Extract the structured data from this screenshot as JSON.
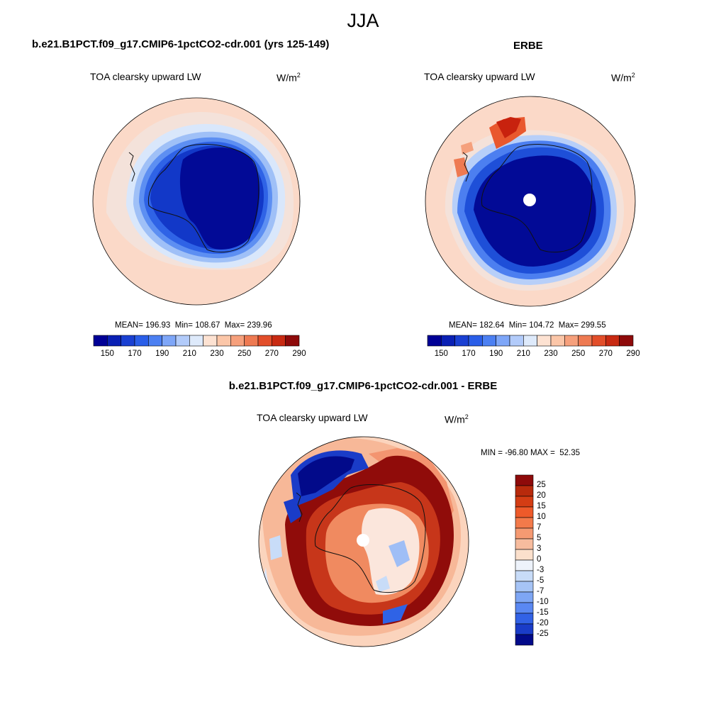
{
  "figure": {
    "season": "JJA",
    "units_base": "W/m",
    "units_exp": "2"
  },
  "panels": {
    "model": {
      "header": "b.e21.B1PCT.f09_g17.CMIP6-1pctCO2-cdr.001 (yrs 125-149)",
      "variable": "TOA clearsky upward LW",
      "stats": {
        "mean": "196.93",
        "min": "108.67",
        "max": "239.96"
      }
    },
    "obs": {
      "header": "ERBE",
      "variable": "TOA clearsky upward LW",
      "stats": {
        "mean": "182.64",
        "min": "104.72",
        "max": "299.55"
      }
    },
    "diff": {
      "header": "b.e21.B1PCT.f09_g17.CMIP6-1pctCO2-cdr.001 - ERBE",
      "variable": "TOA clearsky upward LW",
      "minmax": {
        "min": "-96.80",
        "max": "52.35"
      }
    }
  },
  "labels": {
    "mean": "MEAN=",
    "min": "Min=",
    "max": "Max=",
    "min_caps": "MIN =",
    "max_caps": "MAX ="
  },
  "chart_data": [
    {
      "type": "heatmap",
      "projection": "south-polar-stereographic",
      "title": "b.e21.B1PCT.f09_g17.CMIP6-1pctCO2-cdr.001 (yrs 125-149)",
      "subtitle": "TOA clearsky upward LW",
      "units": "W/m2",
      "colorbar": {
        "ticks": [
          "150",
          "170",
          "190",
          "210",
          "230",
          "250",
          "270",
          "290"
        ],
        "colors": [
          "#000096",
          "#0a20b4",
          "#1a40d2",
          "#2a5ee8",
          "#4c80f2",
          "#7ea6f8",
          "#b2cbfa",
          "#deeafb",
          "#fde2d2",
          "#fbc6a8",
          "#f6a07c",
          "#ee7a52",
          "#e24e2a",
          "#c82a12",
          "#8e0a0a"
        ]
      },
      "stats": {
        "mean": 196.93,
        "min": 108.67,
        "max": 239.96
      }
    },
    {
      "type": "heatmap",
      "projection": "south-polar-stereographic",
      "title": "ERBE",
      "subtitle": "TOA clearsky upward LW",
      "units": "W/m2",
      "colorbar": {
        "ticks": [
          "150",
          "170",
          "190",
          "210",
          "230",
          "250",
          "270",
          "290"
        ],
        "colors": [
          "#000096",
          "#0a20b4",
          "#1a40d2",
          "#2a5ee8",
          "#4c80f2",
          "#7ea6f8",
          "#b2cbfa",
          "#deeafb",
          "#fde2d2",
          "#fbc6a8",
          "#f6a07c",
          "#ee7a52",
          "#e24e2a",
          "#c82a12",
          "#8e0a0a"
        ]
      },
      "stats": {
        "mean": 182.64,
        "min": 104.72,
        "max": 299.55
      }
    },
    {
      "type": "heatmap",
      "projection": "south-polar-stereographic",
      "title": "b.e21.B1PCT.f09_g17.CMIP6-1pctCO2-cdr.001 - ERBE",
      "subtitle": "TOA clearsky upward LW",
      "units": "W/m2",
      "colorbar": {
        "orientation": "vertical",
        "ticks": [
          "25",
          "20",
          "15",
          "10",
          "7",
          "5",
          "3",
          "0",
          "-3",
          "-5",
          "-7",
          "-10",
          "-15",
          "-20",
          "-25"
        ],
        "colors": [
          "#8e0a0a",
          "#b82a0c",
          "#d43d14",
          "#ee5a2a",
          "#f37a4a",
          "#f59a72",
          "#f7bc9e",
          "#fbe0cc",
          "#eef3fb",
          "#c8dcf8",
          "#a6c4f6",
          "#7ea6f4",
          "#5a88f2",
          "#3262e6",
          "#1a3cc8",
          "#020a8a"
        ]
      },
      "stats": {
        "min": -96.8,
        "max": 52.35
      }
    }
  ]
}
